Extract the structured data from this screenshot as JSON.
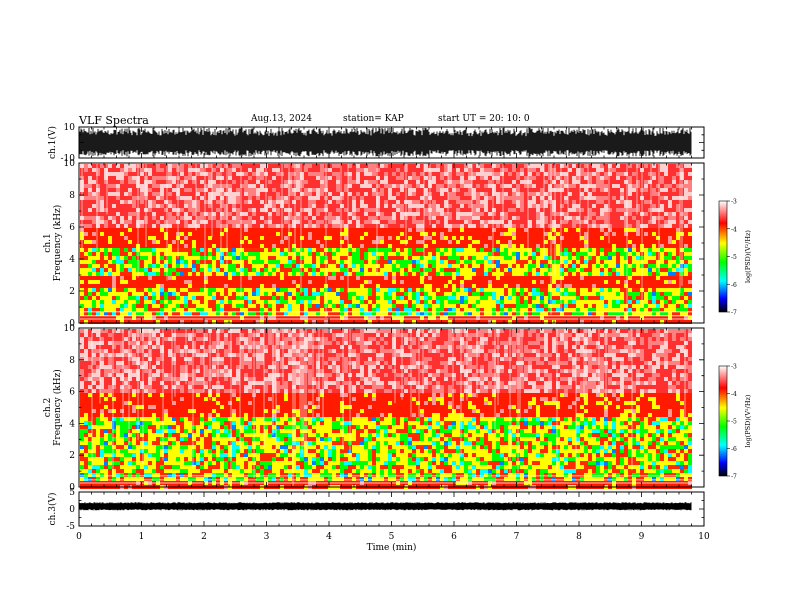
{
  "header": {
    "title": "VLF Spectra",
    "date": "Aug.13, 2024",
    "station": "station= KAP",
    "start": "start  UT  =   20: 10: 0"
  },
  "colors": {
    "background": "#ffffff",
    "axis": "#000000",
    "colormap": [
      "#000000",
      "#0000ff",
      "#00ffff",
      "#00ff00",
      "#ffff00",
      "#ff0000",
      "#ffffff"
    ]
  },
  "chart_data": [
    {
      "type": "line",
      "panel": "ch1-waveform",
      "ylabel": "ch.1(V)",
      "ylim": [
        -10,
        10
      ],
      "yticks": [
        "10",
        "-10"
      ],
      "xlim": [
        0,
        10
      ],
      "description_values": {
        "typical_amplitude_v": 9
      }
    },
    {
      "type": "heatmap",
      "panel": "ch1-spectrogram",
      "ylabel": "ch.1\nFrequency  (kHz)",
      "ylim": [
        0,
        10
      ],
      "yticks": [
        "0",
        "2",
        "4",
        "6",
        "8",
        "10"
      ],
      "xlim": [
        0,
        10
      ],
      "colorbar": {
        "label": "log(PSD)(V²/Hz)",
        "range": [
          -7,
          -3
        ],
        "ticks": [
          "-3",
          "-4",
          "-5",
          "-6",
          "-7"
        ]
      },
      "bands_khz": [
        [
          0.6,
          2.4
        ],
        [
          3.0,
          4.8
        ]
      ]
    },
    {
      "type": "heatmap",
      "panel": "ch2-spectrogram",
      "ylabel": "ch.2\nFrequency  (kHz)",
      "ylim": [
        0,
        10
      ],
      "yticks": [
        "0",
        "2",
        "4",
        "6",
        "8",
        "10"
      ],
      "xlim": [
        0,
        10
      ],
      "colorbar": {
        "label": "log(PSD)(V²/Hz)",
        "range": [
          -7,
          -3
        ],
        "ticks": [
          "-3",
          "-4",
          "-5",
          "-6",
          "-7"
        ]
      },
      "bands_khz": [
        [
          0.4,
          4.5
        ]
      ]
    },
    {
      "type": "line",
      "panel": "ch3-waveform",
      "ylabel": "ch.3(V)",
      "ylim": [
        -5,
        5
      ],
      "yticks": [
        "5",
        "0",
        "-5"
      ],
      "xlim": [
        0,
        10
      ],
      "xlabel": "Time  (min)",
      "xticks": [
        "0",
        "1",
        "2",
        "3",
        "4",
        "5",
        "6",
        "7",
        "8",
        "9",
        "10"
      ],
      "description_values": {
        "mean_v": 0,
        "amplitude_v": 0.6
      }
    }
  ]
}
